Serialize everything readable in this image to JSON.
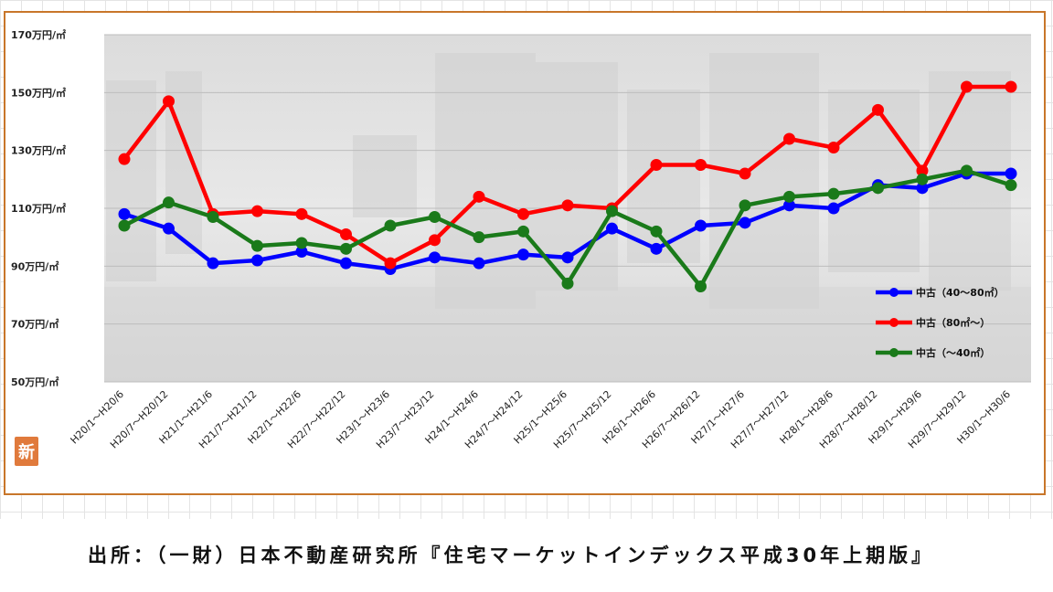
{
  "source": "出所：（一財）日本不動産研究所『住宅マーケットインデックス平成30年上期版』",
  "logo_text": "新",
  "chart_data": {
    "type": "line",
    "title": "",
    "xlabel": "",
    "ylabel": "",
    "y_tick_labels": [
      "170万円/㎡",
      "150万円/㎡",
      "130万円/㎡",
      "110万円/㎡",
      "90万円/㎡",
      "70万円/㎡",
      "50万円/㎡"
    ],
    "y_ticks": [
      170,
      150,
      130,
      110,
      90,
      70,
      50
    ],
    "ylim": [
      50,
      170
    ],
    "grid": true,
    "legend_position": "right",
    "categories": [
      "H20/1～H20/6",
      "H20/7～H20/12",
      "H21/1～H21/6",
      "H21/7～H21/12",
      "H22/1～H22/6",
      "H22/7～H22/12",
      "H23/1～H23/6",
      "H23/7～H23/12",
      "H24/1～H24/6",
      "H24/7～H24/12",
      "H25/1～H25/6",
      "H25/7～H25/12",
      "H26/1～H26/6",
      "H26/7～H26/12",
      "H27/1～H27/6",
      "H27/7～H27/12",
      "H28/1～H28/6",
      "H28/7～H28/12",
      "H29/1～H29/6",
      "H29/7～H29/12",
      "H30/1～H30/6"
    ],
    "series": [
      {
        "name": "中古（40～80㎡）",
        "color": "#0000ff",
        "values": [
          108,
          103,
          91,
          92,
          95,
          91,
          89,
          93,
          91,
          94,
          93,
          103,
          96,
          104,
          105,
          111,
          110,
          118,
          117,
          122,
          122
        ]
      },
      {
        "name": "中古（80㎡～）",
        "color": "#ff0000",
        "values": [
          127,
          147,
          108,
          109,
          108,
          101,
          91,
          99,
          114,
          108,
          111,
          110,
          125,
          125,
          122,
          134,
          131,
          144,
          123,
          152,
          152
        ]
      },
      {
        "name": "中古（～40㎡）",
        "color": "#1a7a1a",
        "values": [
          104,
          112,
          107,
          97,
          98,
          96,
          104,
          107,
          100,
          102,
          84,
          109,
          102,
          83,
          111,
          114,
          115,
          117,
          120,
          123,
          118
        ]
      }
    ]
  }
}
